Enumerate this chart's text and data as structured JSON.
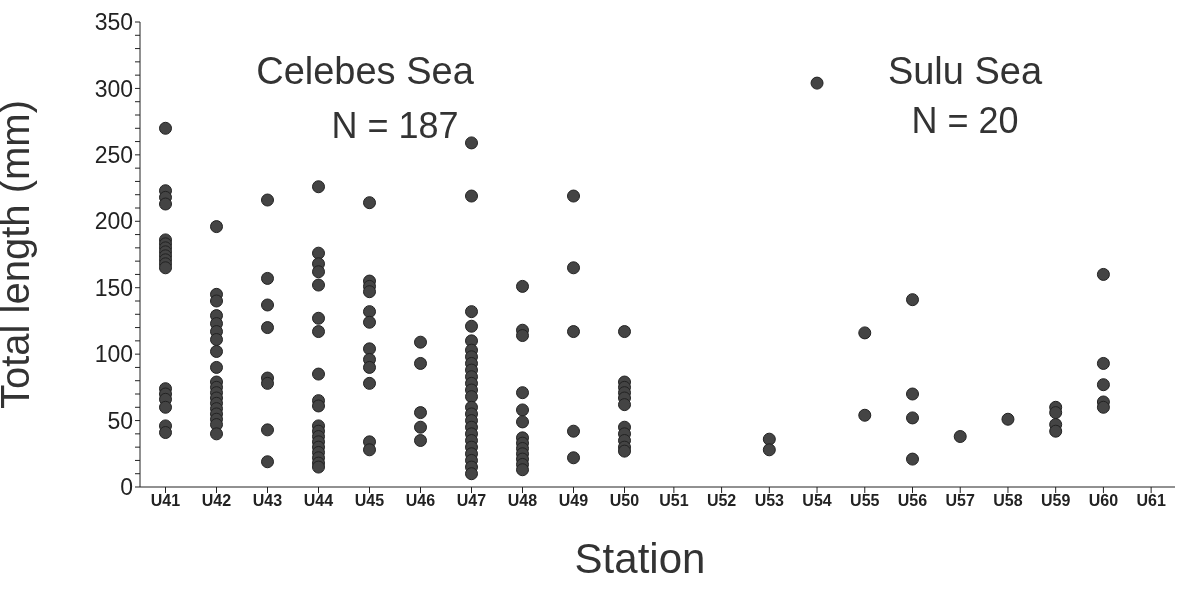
{
  "chart_data": [
    {
      "type": "scatter",
      "ylabel": "Total length (mm)",
      "xlabel": "Station",
      "annotations": [
        "Celebes Sea",
        "N = 187"
      ],
      "marker": "circle",
      "categories": [
        "U41",
        "U42",
        "U43",
        "U44",
        "U45",
        "U46",
        "U47",
        "U48",
        "U49",
        "U50"
      ],
      "ylim": [
        0,
        350
      ],
      "yticks": [
        0,
        {
          "value": 10,
          "label": null
        },
        {
          "value": 20,
          "label": null
        },
        {
          "value": 30,
          "label": null
        },
        {
          "value": 40,
          "label": null
        },
        50,
        {
          "value": 60,
          "label": null
        },
        {
          "value": 70,
          "label": null
        },
        {
          "value": 80,
          "label": null
        },
        {
          "value": 90,
          "label": null
        },
        100,
        {
          "value": 110,
          "label": null
        },
        {
          "value": 120,
          "label": null
        },
        {
          "value": 130,
          "label": null
        },
        {
          "value": 140,
          "label": null
        },
        150,
        {
          "value": 160,
          "label": null
        },
        {
          "value": 170,
          "label": null
        },
        {
          "value": 180,
          "label": null
        },
        {
          "value": 190,
          "label": null
        },
        200,
        {
          "value": 210,
          "label": null
        },
        {
          "value": 220,
          "label": null
        },
        {
          "value": 230,
          "label": null
        },
        {
          "value": 240,
          "label": null
        },
        250,
        {
          "value": 260,
          "label": null
        },
        {
          "value": 270,
          "label": null
        },
        {
          "value": 280,
          "label": null
        },
        {
          "value": 290,
          "label": null
        },
        300,
        {
          "value": 310,
          "label": null
        },
        {
          "value": 320,
          "label": null
        },
        {
          "value": 330,
          "label": null
        },
        {
          "value": 340,
          "label": null
        },
        350
      ],
      "series": [
        {
          "color": "#444444",
          "x": [
            "U41",
            "U41",
            "U41",
            "U41",
            "U41",
            "U41",
            "U41",
            "U41",
            "U41",
            "U41",
            "U41",
            "U41",
            "U41",
            "U41",
            "U41",
            "U41",
            "U41",
            "U41",
            "U42",
            "U42",
            "U42",
            "U42",
            "U42",
            "U42",
            "U42",
            "U42",
            "U42",
            "U42",
            "U42",
            "U42",
            "U42",
            "U42",
            "U42",
            "U42",
            "U42",
            "U42",
            "U42",
            "U43",
            "U43",
            "U43",
            "U43",
            "U43",
            "U43",
            "U43",
            "U43",
            "U44",
            "U44",
            "U44",
            "U44",
            "U44",
            "U44",
            "U44",
            "U44",
            "U44",
            "U44",
            "U44",
            "U44",
            "U44",
            "U44",
            "U44",
            "U44",
            "U44",
            "U44",
            "U44",
            "U45",
            "U45",
            "U45",
            "U45",
            "U45",
            "U45",
            "U45",
            "U45",
            "U45",
            "U45",
            "U45",
            "U45",
            "U46",
            "U46",
            "U46",
            "U46",
            "U46",
            "U47",
            "U47",
            "U47",
            "U47",
            "U47",
            "U47",
            "U47",
            "U47",
            "U47",
            "U47",
            "U47",
            "U47",
            "U47",
            "U47",
            "U47",
            "U47",
            "U47",
            "U47",
            "U47",
            "U47",
            "U47",
            "U47",
            "U47",
            "U47",
            "U48",
            "U48",
            "U48",
            "U48",
            "U48",
            "U48",
            "U48",
            "U48",
            "U48",
            "U48",
            "U48",
            "U48",
            "U48",
            "U49",
            "U49",
            "U49",
            "U49",
            "U49",
            "U50",
            "U50",
            "U50",
            "U50",
            "U50",
            "U50",
            "U50",
            "U50",
            "U50",
            "U50",
            "U50"
          ],
          "values": [
            270,
            223,
            218,
            213,
            186,
            183,
            180,
            177,
            174,
            171,
            168,
            165,
            74,
            70,
            66,
            60,
            46,
            41,
            196,
            145,
            140,
            129,
            123,
            117,
            111,
            102,
            90,
            79,
            75,
            71,
            67,
            63,
            59,
            55,
            51,
            47,
            40,
            216,
            157,
            137,
            120,
            82,
            78,
            43,
            19,
            226,
            176,
            168,
            162,
            152,
            127,
            117,
            85,
            65,
            61,
            46,
            42,
            38,
            34,
            30,
            26,
            22,
            18,
            15,
            214,
            155,
            151,
            147,
            132,
            124,
            104,
            96,
            90,
            78,
            34,
            28,
            109,
            93,
            56,
            45,
            35,
            259,
            219,
            132,
            121,
            110,
            103,
            98,
            93,
            88,
            83,
            78,
            73,
            68,
            60,
            55,
            50,
            45,
            40,
            35,
            30,
            25,
            20,
            15,
            10,
            151,
            118,
            114,
            71,
            58,
            49,
            37,
            33,
            29,
            25,
            21,
            17,
            13,
            219,
            165,
            117,
            42,
            22,
            117,
            79,
            75,
            71,
            67,
            62,
            45,
            40,
            35,
            30,
            27
          ]
        }
      ]
    },
    {
      "type": "scatter",
      "annotations": [
        "Sulu Sea",
        "N = 20"
      ],
      "marker": "circle",
      "tick_labels": "x",
      "categories": [
        "U51",
        "U52",
        "U53",
        "U54",
        "U55",
        "U56",
        "U57",
        "U58",
        "U59",
        "U60",
        "U61"
      ],
      "ylim": [
        0,
        350
      ],
      "yticks": [
        0,
        50,
        100,
        150,
        200,
        250,
        300,
        350
      ],
      "series": [
        {
          "color": "#444444",
          "x": [
            "U53",
            "U53",
            "U54",
            "U55",
            "U55",
            "U56",
            "U56",
            "U56",
            "U56",
            "U57",
            "U58",
            "U59",
            "U59",
            "U59",
            "U59",
            "U60",
            "U60",
            "U60",
            "U60",
            "U60"
          ],
          "values": [
            36,
            28,
            304,
            116,
            54,
            141,
            70,
            52,
            21,
            38,
            51,
            60,
            56,
            47,
            42,
            160,
            93,
            77,
            64,
            60
          ]
        }
      ]
    }
  ]
}
